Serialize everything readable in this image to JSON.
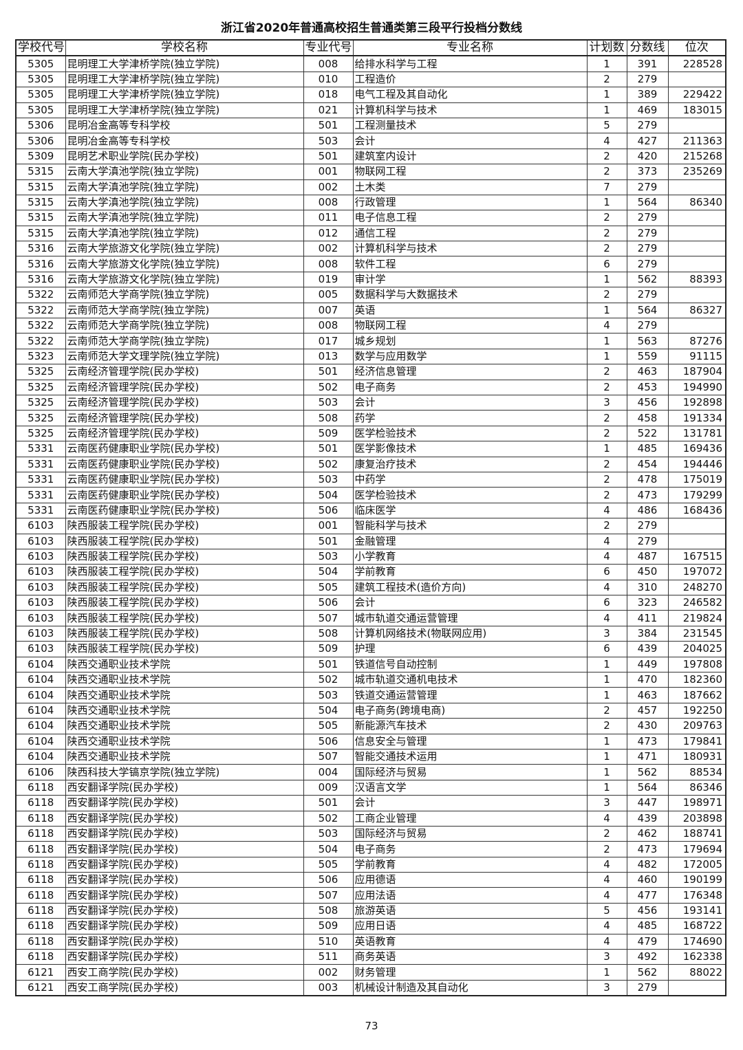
{
  "title": "浙江省2020年普通高校招生普通类第三段平行投档分数线",
  "columns": [
    "学校代号",
    "学校名称",
    "专业代号",
    "专业名称",
    "计划数",
    "分数线",
    "位次"
  ],
  "rows": [
    [
      "5305",
      "昆明理工大学津桥学院(独立学院)",
      "008",
      "给排水科学与工程",
      "1",
      "391",
      "228528"
    ],
    [
      "5305",
      "昆明理工大学津桥学院(独立学院)",
      "010",
      "工程造价",
      "2",
      "279",
      ""
    ],
    [
      "5305",
      "昆明理工大学津桥学院(独立学院)",
      "018",
      "电气工程及其自动化",
      "1",
      "389",
      "229422"
    ],
    [
      "5305",
      "昆明理工大学津桥学院(独立学院)",
      "021",
      "计算机科学与技术",
      "1",
      "469",
      "183015"
    ],
    [
      "5306",
      "昆明冶金高等专科学校",
      "501",
      "工程测量技术",
      "5",
      "279",
      ""
    ],
    [
      "5306",
      "昆明冶金高等专科学校",
      "503",
      "会计",
      "4",
      "427",
      "211363"
    ],
    [
      "5309",
      "昆明艺术职业学院(民办学校)",
      "501",
      "建筑室内设计",
      "2",
      "420",
      "215268"
    ],
    [
      "5315",
      "云南大学滇池学院(独立学院)",
      "001",
      "物联网工程",
      "2",
      "373",
      "235269"
    ],
    [
      "5315",
      "云南大学滇池学院(独立学院)",
      "002",
      "土木类",
      "7",
      "279",
      ""
    ],
    [
      "5315",
      "云南大学滇池学院(独立学院)",
      "008",
      "行政管理",
      "1",
      "564",
      "86340"
    ],
    [
      "5315",
      "云南大学滇池学院(独立学院)",
      "011",
      "电子信息工程",
      "2",
      "279",
      ""
    ],
    [
      "5315",
      "云南大学滇池学院(独立学院)",
      "012",
      "通信工程",
      "2",
      "279",
      ""
    ],
    [
      "5316",
      "云南大学旅游文化学院(独立学院)",
      "002",
      "计算机科学与技术",
      "2",
      "279",
      ""
    ],
    [
      "5316",
      "云南大学旅游文化学院(独立学院)",
      "008",
      "软件工程",
      "6",
      "279",
      ""
    ],
    [
      "5316",
      "云南大学旅游文化学院(独立学院)",
      "019",
      "审计学",
      "1",
      "562",
      "88393"
    ],
    [
      "5322",
      "云南师范大学商学院(独立学院)",
      "005",
      "数据科学与大数据技术",
      "2",
      "279",
      ""
    ],
    [
      "5322",
      "云南师范大学商学院(独立学院)",
      "007",
      "英语",
      "1",
      "564",
      "86327"
    ],
    [
      "5322",
      "云南师范大学商学院(独立学院)",
      "008",
      "物联网工程",
      "4",
      "279",
      ""
    ],
    [
      "5322",
      "云南师范大学商学院(独立学院)",
      "017",
      "城乡规划",
      "1",
      "563",
      "87276"
    ],
    [
      "5323",
      "云南师范大学文理学院(独立学院)",
      "013",
      "数学与应用数学",
      "1",
      "559",
      "91115"
    ],
    [
      "5325",
      "云南经济管理学院(民办学校)",
      "501",
      "经济信息管理",
      "2",
      "463",
      "187904"
    ],
    [
      "5325",
      "云南经济管理学院(民办学校)",
      "502",
      "电子商务",
      "2",
      "453",
      "194990"
    ],
    [
      "5325",
      "云南经济管理学院(民办学校)",
      "503",
      "会计",
      "3",
      "456",
      "192898"
    ],
    [
      "5325",
      "云南经济管理学院(民办学校)",
      "508",
      "药学",
      "2",
      "458",
      "191334"
    ],
    [
      "5325",
      "云南经济管理学院(民办学校)",
      "509",
      "医学检验技术",
      "2",
      "522",
      "131781"
    ],
    [
      "5331",
      "云南医药健康职业学院(民办学校)",
      "501",
      "医学影像技术",
      "1",
      "485",
      "169436"
    ],
    [
      "5331",
      "云南医药健康职业学院(民办学校)",
      "502",
      "康复治疗技术",
      "2",
      "454",
      "194446"
    ],
    [
      "5331",
      "云南医药健康职业学院(民办学校)",
      "503",
      "中药学",
      "2",
      "478",
      "175019"
    ],
    [
      "5331",
      "云南医药健康职业学院(民办学校)",
      "504",
      "医学检验技术",
      "2",
      "473",
      "179299"
    ],
    [
      "5331",
      "云南医药健康职业学院(民办学校)",
      "506",
      "临床医学",
      "4",
      "486",
      "168436"
    ],
    [
      "6103",
      "陕西服装工程学院(民办学校)",
      "001",
      "智能科学与技术",
      "2",
      "279",
      ""
    ],
    [
      "6103",
      "陕西服装工程学院(民办学校)",
      "501",
      "金融管理",
      "4",
      "279",
      ""
    ],
    [
      "6103",
      "陕西服装工程学院(民办学校)",
      "503",
      "小学教育",
      "4",
      "487",
      "167515"
    ],
    [
      "6103",
      "陕西服装工程学院(民办学校)",
      "504",
      "学前教育",
      "6",
      "450",
      "197072"
    ],
    [
      "6103",
      "陕西服装工程学院(民办学校)",
      "505",
      "建筑工程技术(造价方向)",
      "4",
      "310",
      "248270"
    ],
    [
      "6103",
      "陕西服装工程学院(民办学校)",
      "506",
      "会计",
      "6",
      "323",
      "246582"
    ],
    [
      "6103",
      "陕西服装工程学院(民办学校)",
      "507",
      "城市轨道交通运营管理",
      "4",
      "411",
      "219824"
    ],
    [
      "6103",
      "陕西服装工程学院(民办学校)",
      "508",
      "计算机网络技术(物联网应用)",
      "3",
      "384",
      "231545"
    ],
    [
      "6103",
      "陕西服装工程学院(民办学校)",
      "509",
      "护理",
      "6",
      "439",
      "204025"
    ],
    [
      "6104",
      "陕西交通职业技术学院",
      "501",
      "铁道信号自动控制",
      "1",
      "449",
      "197808"
    ],
    [
      "6104",
      "陕西交通职业技术学院",
      "502",
      "城市轨道交通机电技术",
      "1",
      "470",
      "182360"
    ],
    [
      "6104",
      "陕西交通职业技术学院",
      "503",
      "铁道交通运营管理",
      "1",
      "463",
      "187662"
    ],
    [
      "6104",
      "陕西交通职业技术学院",
      "504",
      "电子商务(跨境电商)",
      "2",
      "457",
      "192250"
    ],
    [
      "6104",
      "陕西交通职业技术学院",
      "505",
      "新能源汽车技术",
      "2",
      "430",
      "209763"
    ],
    [
      "6104",
      "陕西交通职业技术学院",
      "506",
      "信息安全与管理",
      "1",
      "473",
      "179841"
    ],
    [
      "6104",
      "陕西交通职业技术学院",
      "507",
      "智能交通技术运用",
      "1",
      "471",
      "180931"
    ],
    [
      "6106",
      "陕西科技大学镐京学院(独立学院)",
      "004",
      "国际经济与贸易",
      "1",
      "562",
      "88534"
    ],
    [
      "6118",
      "西安翻译学院(民办学校)",
      "009",
      "汉语言文学",
      "1",
      "564",
      "86346"
    ],
    [
      "6118",
      "西安翻译学院(民办学校)",
      "501",
      "会计",
      "3",
      "447",
      "198971"
    ],
    [
      "6118",
      "西安翻译学院(民办学校)",
      "502",
      "工商企业管理",
      "4",
      "439",
      "203898"
    ],
    [
      "6118",
      "西安翻译学院(民办学校)",
      "503",
      "国际经济与贸易",
      "2",
      "462",
      "188741"
    ],
    [
      "6118",
      "西安翻译学院(民办学校)",
      "504",
      "电子商务",
      "2",
      "473",
      "179694"
    ],
    [
      "6118",
      "西安翻译学院(民办学校)",
      "505",
      "学前教育",
      "4",
      "482",
      "172005"
    ],
    [
      "6118",
      "西安翻译学院(民办学校)",
      "506",
      "应用德语",
      "4",
      "460",
      "190199"
    ],
    [
      "6118",
      "西安翻译学院(民办学校)",
      "507",
      "应用法语",
      "4",
      "477",
      "176348"
    ],
    [
      "6118",
      "西安翻译学院(民办学校)",
      "508",
      "旅游英语",
      "5",
      "456",
      "193141"
    ],
    [
      "6118",
      "西安翻译学院(民办学校)",
      "509",
      "应用日语",
      "4",
      "485",
      "168722"
    ],
    [
      "6118",
      "西安翻译学院(民办学校)",
      "510",
      "英语教育",
      "4",
      "479",
      "174690"
    ],
    [
      "6118",
      "西安翻译学院(民办学校)",
      "511",
      "商务英语",
      "3",
      "492",
      "162338"
    ],
    [
      "6121",
      "西安工商学院(民办学校)",
      "002",
      "财务管理",
      "1",
      "562",
      "88022"
    ],
    [
      "6121",
      "西安工商学院(民办学校)",
      "003",
      "机械设计制造及其自动化",
      "3",
      "279",
      ""
    ]
  ],
  "page_number": "73"
}
